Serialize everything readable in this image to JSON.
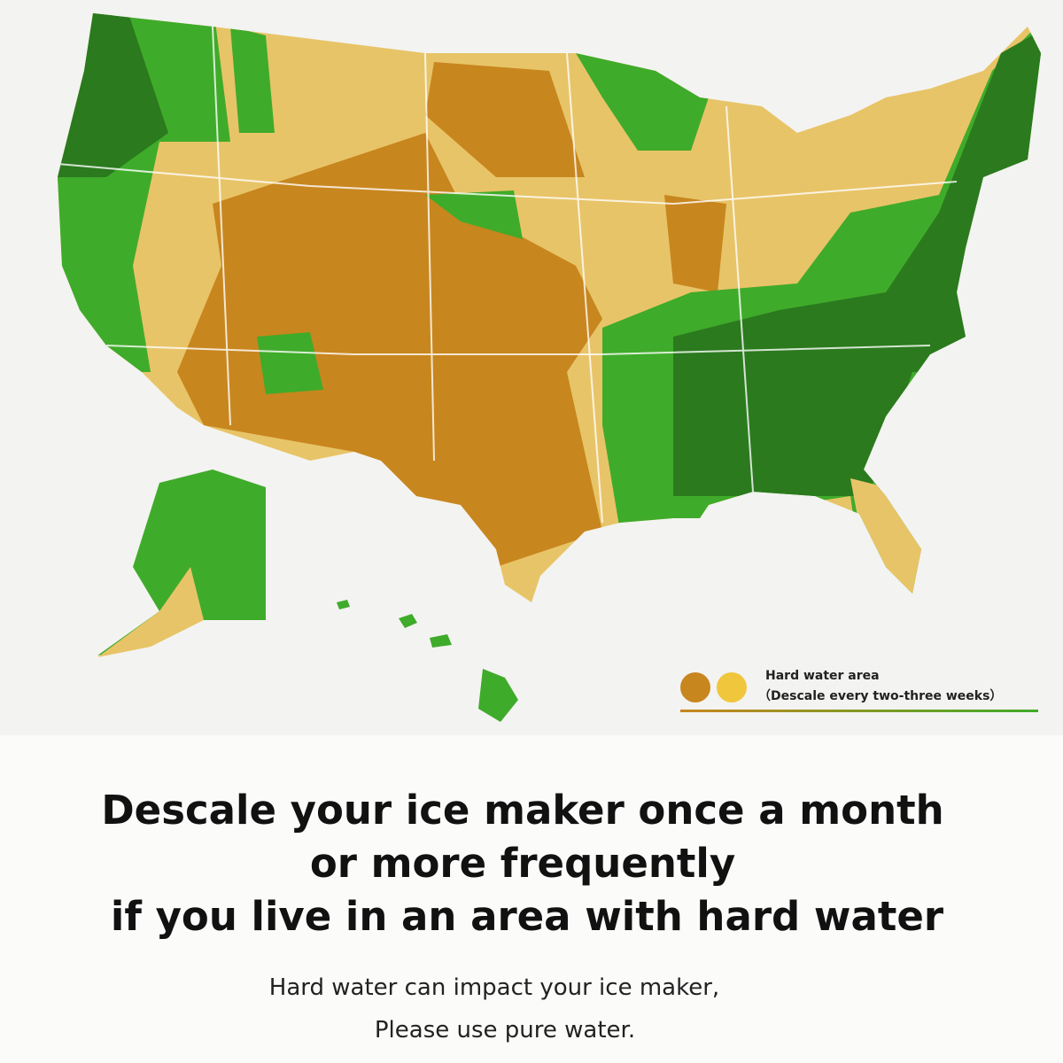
{
  "legend": {
    "title": "Hard water area",
    "note": "（Descale every two-three weeks）"
  },
  "headline": {
    "lines": [
      "Descale your ice maker once a month",
      "or more frequently",
      "if you live in an area with hard water"
    ]
  },
  "subtext": {
    "lines": [
      "Hard water can impact your ice maker,",
      "Please use pure water."
    ]
  }
}
